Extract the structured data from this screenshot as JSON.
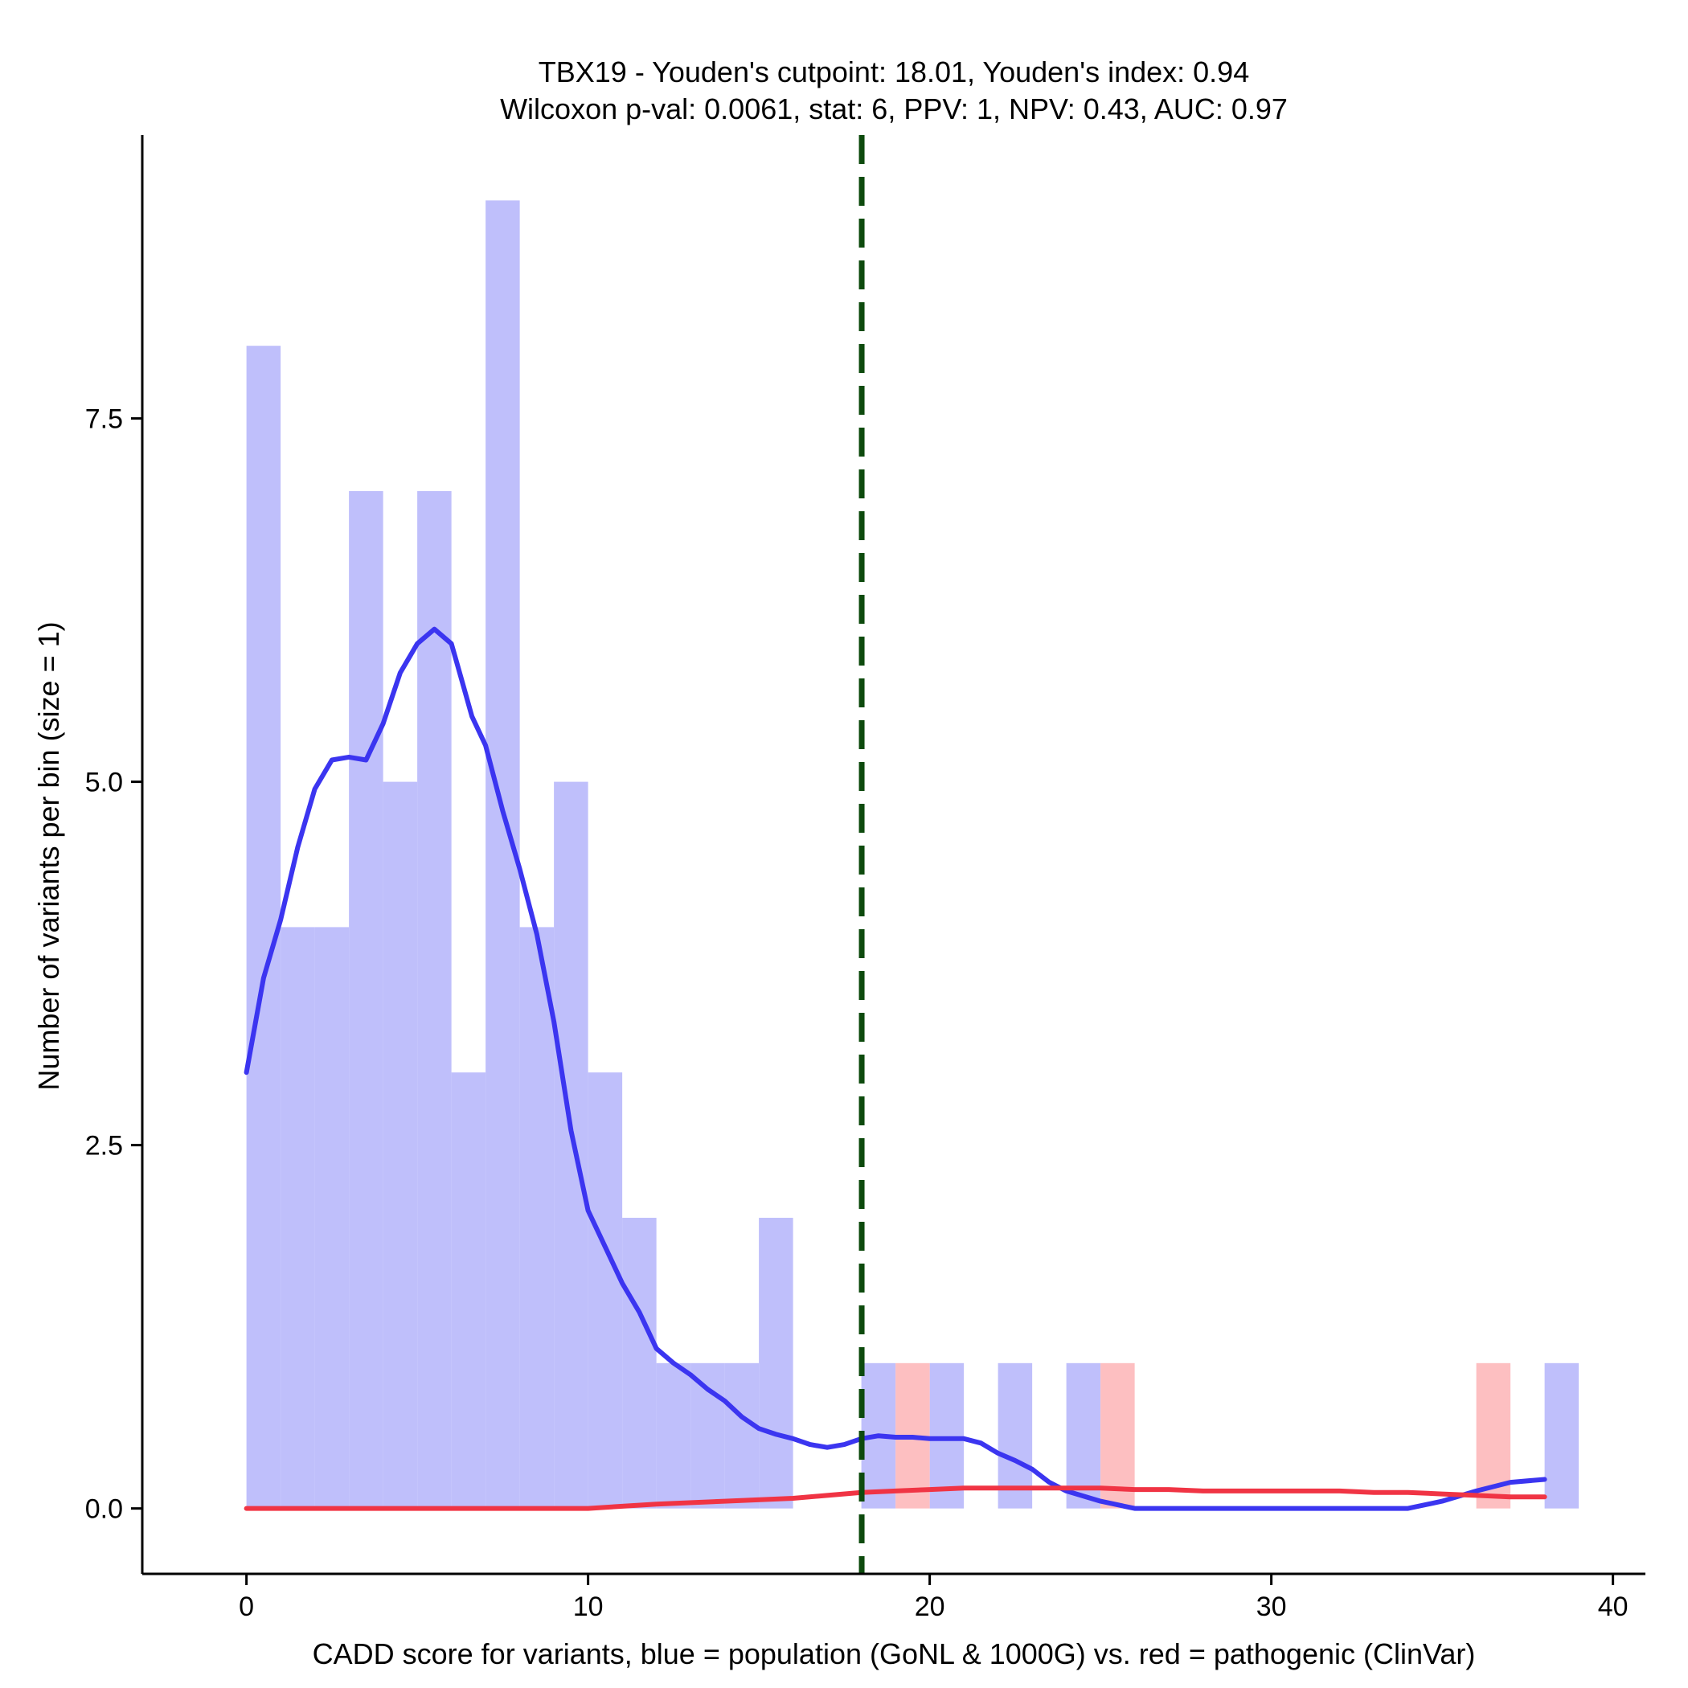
{
  "chart_data": {
    "type": "bar",
    "title_lines": [
      "TBX19 - Youden's cutpoint: 18.01, Youden's index: 0.94",
      "Wilcoxon p-val: 0.0061, stat: 6, PPV: 1, NPV: 0.43, AUC: 0.97"
    ],
    "xlabel": "CADD score for variants, blue = population (GoNL & 1000G) vs. red = pathogenic (ClinVar)",
    "ylabel": "Number of variants per bin (size = 1)",
    "xlim": [
      -3.05,
      40.95
    ],
    "ylim": [
      -0.45,
      9.45
    ],
    "x_ticks": [
      0,
      10,
      20,
      30,
      40
    ],
    "x_tick_labels": [
      "0",
      "10",
      "20",
      "30",
      "40"
    ],
    "y_ticks": [
      0,
      2.5,
      5,
      7.5
    ],
    "y_tick_labels": [
      "0.0",
      "2.5",
      "5.0",
      "7.5"
    ],
    "bin_width": 1,
    "grid": false,
    "cutpoint": 18.01,
    "colors": {
      "population_bar": "#bfbffb",
      "pathogenic_bar": "#fdbfc1",
      "population_line": "#3b35f0",
      "pathogenic_line": "#f03444",
      "cutpoint_line": "#0d4a0d"
    },
    "series": [
      {
        "kind": "histogram",
        "bins": [
          {
            "start": 0,
            "count": 8
          },
          {
            "start": 1,
            "count": 4
          },
          {
            "start": 2,
            "count": 4
          },
          {
            "start": 3,
            "count": 7
          },
          {
            "start": 4,
            "count": 5
          },
          {
            "start": 5,
            "count": 7
          },
          {
            "start": 6,
            "count": 3
          },
          {
            "start": 7,
            "count": 9
          },
          {
            "start": 8,
            "count": 4
          },
          {
            "start": 9,
            "count": 5
          },
          {
            "start": 10,
            "count": 3
          },
          {
            "start": 11,
            "count": 2
          },
          {
            "start": 12,
            "count": 1
          },
          {
            "start": 13,
            "count": 1
          },
          {
            "start": 14,
            "count": 1
          },
          {
            "start": 15,
            "count": 2
          },
          {
            "start": 18,
            "count": 1
          },
          {
            "start": 20,
            "count": 1
          },
          {
            "start": 22,
            "count": 1
          },
          {
            "start": 24,
            "count": 1
          },
          {
            "start": 38,
            "count": 1
          }
        ]
      },
      {
        "kind": "histogram",
        "bins": [
          {
            "start": 19,
            "count": 1
          },
          {
            "start": 25,
            "count": 1
          },
          {
            "start": 36,
            "count": 1
          }
        ]
      },
      {
        "kind": "density",
        "x": [
          0,
          0.5,
          1,
          1.5,
          2,
          2.5,
          3,
          3.5,
          4,
          4.5,
          5,
          5.5,
          6,
          6.3,
          6.6,
          7,
          7.5,
          8,
          8.5,
          9,
          9.5,
          10,
          10.5,
          11,
          11.5,
          12,
          12.5,
          13,
          13.5,
          14,
          14.5,
          15,
          15.5,
          16,
          16.5,
          17,
          17.5,
          18,
          18.5,
          19,
          19.5,
          20,
          20.5,
          21,
          21.5,
          22,
          22.5,
          23,
          23.5,
          24,
          25,
          26,
          27,
          28,
          29,
          30,
          31,
          32,
          33,
          34,
          35,
          36,
          37,
          38
        ],
        "y": [
          3.0,
          3.65,
          4.05,
          4.55,
          4.95,
          5.15,
          5.17,
          5.15,
          5.4,
          5.75,
          5.95,
          6.05,
          5.95,
          5.7,
          5.45,
          5.25,
          4.8,
          4.4,
          3.95,
          3.35,
          2.6,
          2.05,
          1.8,
          1.55,
          1.35,
          1.1,
          1.0,
          0.92,
          0.82,
          0.74,
          0.63,
          0.55,
          0.51,
          0.48,
          0.44,
          0.42,
          0.44,
          0.48,
          0.5,
          0.49,
          0.49,
          0.48,
          0.48,
          0.48,
          0.45,
          0.38,
          0.33,
          0.27,
          0.18,
          0.12,
          0.05,
          0.0,
          0.0,
          0.0,
          0.0,
          0.0,
          0.0,
          0.0,
          0.0,
          0.0,
          0.05,
          0.12,
          0.18,
          0.2
        ]
      },
      {
        "kind": "density",
        "x": [
          0,
          5,
          10,
          12,
          14,
          16,
          17,
          18,
          19,
          20,
          21,
          22,
          23,
          24,
          25,
          26,
          27,
          28,
          29,
          30,
          31,
          32,
          33,
          34,
          35,
          36,
          37,
          38
        ],
        "y": [
          0.0,
          0.0,
          0.0,
          0.03,
          0.05,
          0.07,
          0.09,
          0.11,
          0.12,
          0.13,
          0.14,
          0.14,
          0.14,
          0.14,
          0.14,
          0.13,
          0.13,
          0.12,
          0.12,
          0.12,
          0.12,
          0.12,
          0.11,
          0.11,
          0.1,
          0.09,
          0.08,
          0.08
        ]
      }
    ]
  }
}
